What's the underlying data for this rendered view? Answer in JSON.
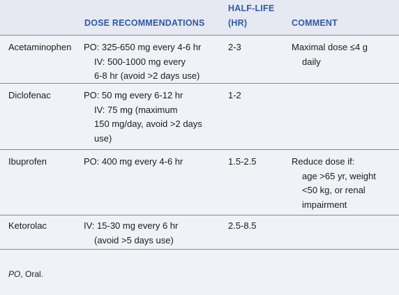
{
  "header": {
    "dose": "DOSE RECOMMENDATIONS",
    "halflife_line1": "HALF-LIFE",
    "halflife_line2": "(HR)",
    "comment": "COMMENT"
  },
  "rows": [
    {
      "drug": "Acetaminophen",
      "dose_lines": [
        "PO: 325-650 mg every 4-6 hr",
        "IV: 500-1000 mg every",
        "6-8 hr (avoid >2 days use)"
      ],
      "halflife": "2-3",
      "comment_lines": [
        "Maximal dose ≤4 g",
        "daily"
      ]
    },
    {
      "drug": "Diclofenac",
      "dose_lines": [
        "PO: 50 mg every 6-12 hr",
        "IV: 75 mg (maximum",
        "150 mg/day, avoid >2 days",
        "use)"
      ],
      "halflife": "1-2",
      "comment_lines": []
    },
    {
      "drug": "Ibuprofen",
      "dose_lines": [
        "PO: 400 mg every 4-6 hr"
      ],
      "halflife": "1.5-2.5",
      "comment_lines": [
        "Reduce dose if:",
        "age >65 yr, weight",
        "<50 kg, or renal",
        "impairment"
      ]
    },
    {
      "drug": "Ketorolac",
      "dose_lines": [
        "IV: 15-30 mg every 6 hr",
        "(avoid >5 days use)"
      ],
      "halflife": "2.5-8.5",
      "comment_lines": []
    }
  ],
  "footnote": {
    "abbr": "PO",
    "text": ", Oral."
  }
}
